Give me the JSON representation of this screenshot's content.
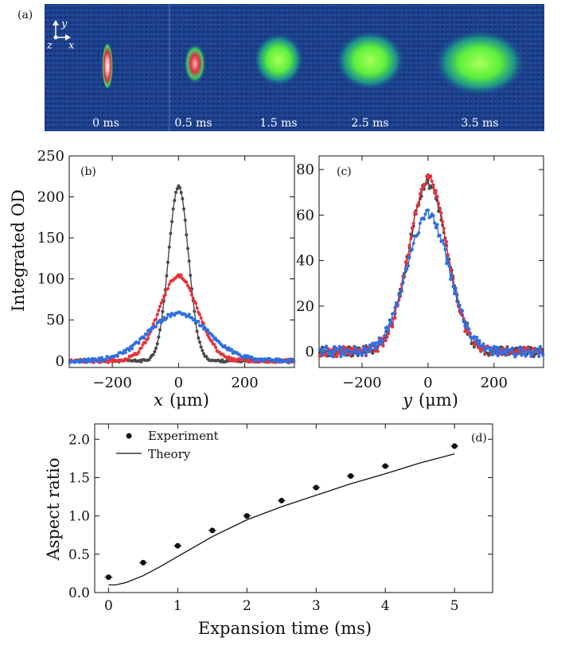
{
  "panel_a": {
    "label": "(a)",
    "axes_labels": {
      "y": "y",
      "z": "z",
      "x": "x"
    },
    "times": [
      "0 ms",
      "0.5 ms",
      "1.5 ms",
      "2.5 ms",
      "3.5 ms"
    ]
  },
  "chart_data": [
    {
      "id": "b",
      "type": "scatter",
      "panel_label": "(b)",
      "xlabel_var": "x",
      "xlabel_unit": "(μm)",
      "ylabel": "Integrated OD",
      "xlim": [
        -330,
        350
      ],
      "ylim": [
        -8,
        250
      ],
      "xticks": [
        -200,
        0,
        200
      ],
      "xtick_labels": [
        "−200",
        "0",
        "200"
      ],
      "yticks": [
        0,
        50,
        100,
        150,
        200,
        250
      ],
      "ytick_labels": [
        "0",
        "50",
        "100",
        "150",
        "200",
        "250"
      ],
      "series": [
        {
          "color": "#4a4a4a",
          "amplitude": 213,
          "sigma": 30,
          "offset": 0,
          "noise": 1.2
        },
        {
          "color": "#e8323a",
          "amplitude": 104,
          "sigma": 58,
          "offset": 0,
          "noise": 1.8
        },
        {
          "color": "#2f6ee0",
          "amplitude": 58,
          "sigma": 90,
          "offset": 0,
          "noise": 2.2
        }
      ]
    },
    {
      "id": "c",
      "type": "scatter",
      "panel_label": "(c)",
      "xlabel_var": "y",
      "xlabel_unit": "(μm)",
      "xlim": [
        -330,
        350
      ],
      "ylim": [
        -7,
        86
      ],
      "xticks": [
        -200,
        0,
        200
      ],
      "xtick_labels": [
        "−200",
        "0",
        "200"
      ],
      "yticks": [
        0,
        20,
        40,
        60,
        80
      ],
      "ytick_labels": [
        "0",
        "20",
        "40",
        "60",
        "80"
      ],
      "series": [
        {
          "color": "#4a4a4a",
          "amplitude": 74,
          "sigma": 58,
          "offset": 0,
          "noise": 2.0
        },
        {
          "color": "#e8323a",
          "amplitude": 76,
          "sigma": 57,
          "offset": 0,
          "noise": 2.0
        },
        {
          "color": "#2f6ee0",
          "amplitude": 60,
          "sigma": 64,
          "offset": 0,
          "noise": 2.2
        }
      ]
    },
    {
      "id": "d",
      "type": "scatter",
      "panel_label": "(d)",
      "xlabel": "Expansion time (ms)",
      "ylabel": "Aspect ratio",
      "xlim": [
        -0.2,
        5.55
      ],
      "ylim": [
        0,
        2.2
      ],
      "xticks": [
        0,
        1,
        2,
        3,
        4,
        5
      ],
      "xtick_labels": [
        "0",
        "1",
        "2",
        "3",
        "4",
        "5"
      ],
      "yticks": [
        0,
        0.5,
        1.0,
        1.5,
        2.0
      ],
      "ytick_labels": [
        "0.0",
        "0.5",
        "1.0",
        "1.5",
        "2.0"
      ],
      "legend": [
        "Experiment",
        "Theory"
      ],
      "legend_position": "top-left",
      "experiment": {
        "x": [
          0,
          0.5,
          1,
          1.5,
          2,
          2.5,
          3,
          3.5,
          4,
          5
        ],
        "y": [
          0.2,
          0.39,
          0.61,
          0.81,
          1.0,
          1.2,
          1.37,
          1.52,
          1.65,
          1.91
        ],
        "err": [
          0.03,
          0.02,
          0.02,
          0.02,
          0.02,
          0.02,
          0.02,
          0.02,
          0.02,
          0.03
        ]
      },
      "theory": {
        "x": [
          0,
          0.1,
          0.25,
          0.5,
          0.75,
          1,
          1.5,
          2,
          2.5,
          3,
          3.5,
          4,
          4.5,
          5
        ],
        "y": [
          0.1,
          0.1,
          0.13,
          0.22,
          0.34,
          0.47,
          0.73,
          0.95,
          1.12,
          1.27,
          1.42,
          1.55,
          1.69,
          1.81
        ]
      }
    }
  ]
}
